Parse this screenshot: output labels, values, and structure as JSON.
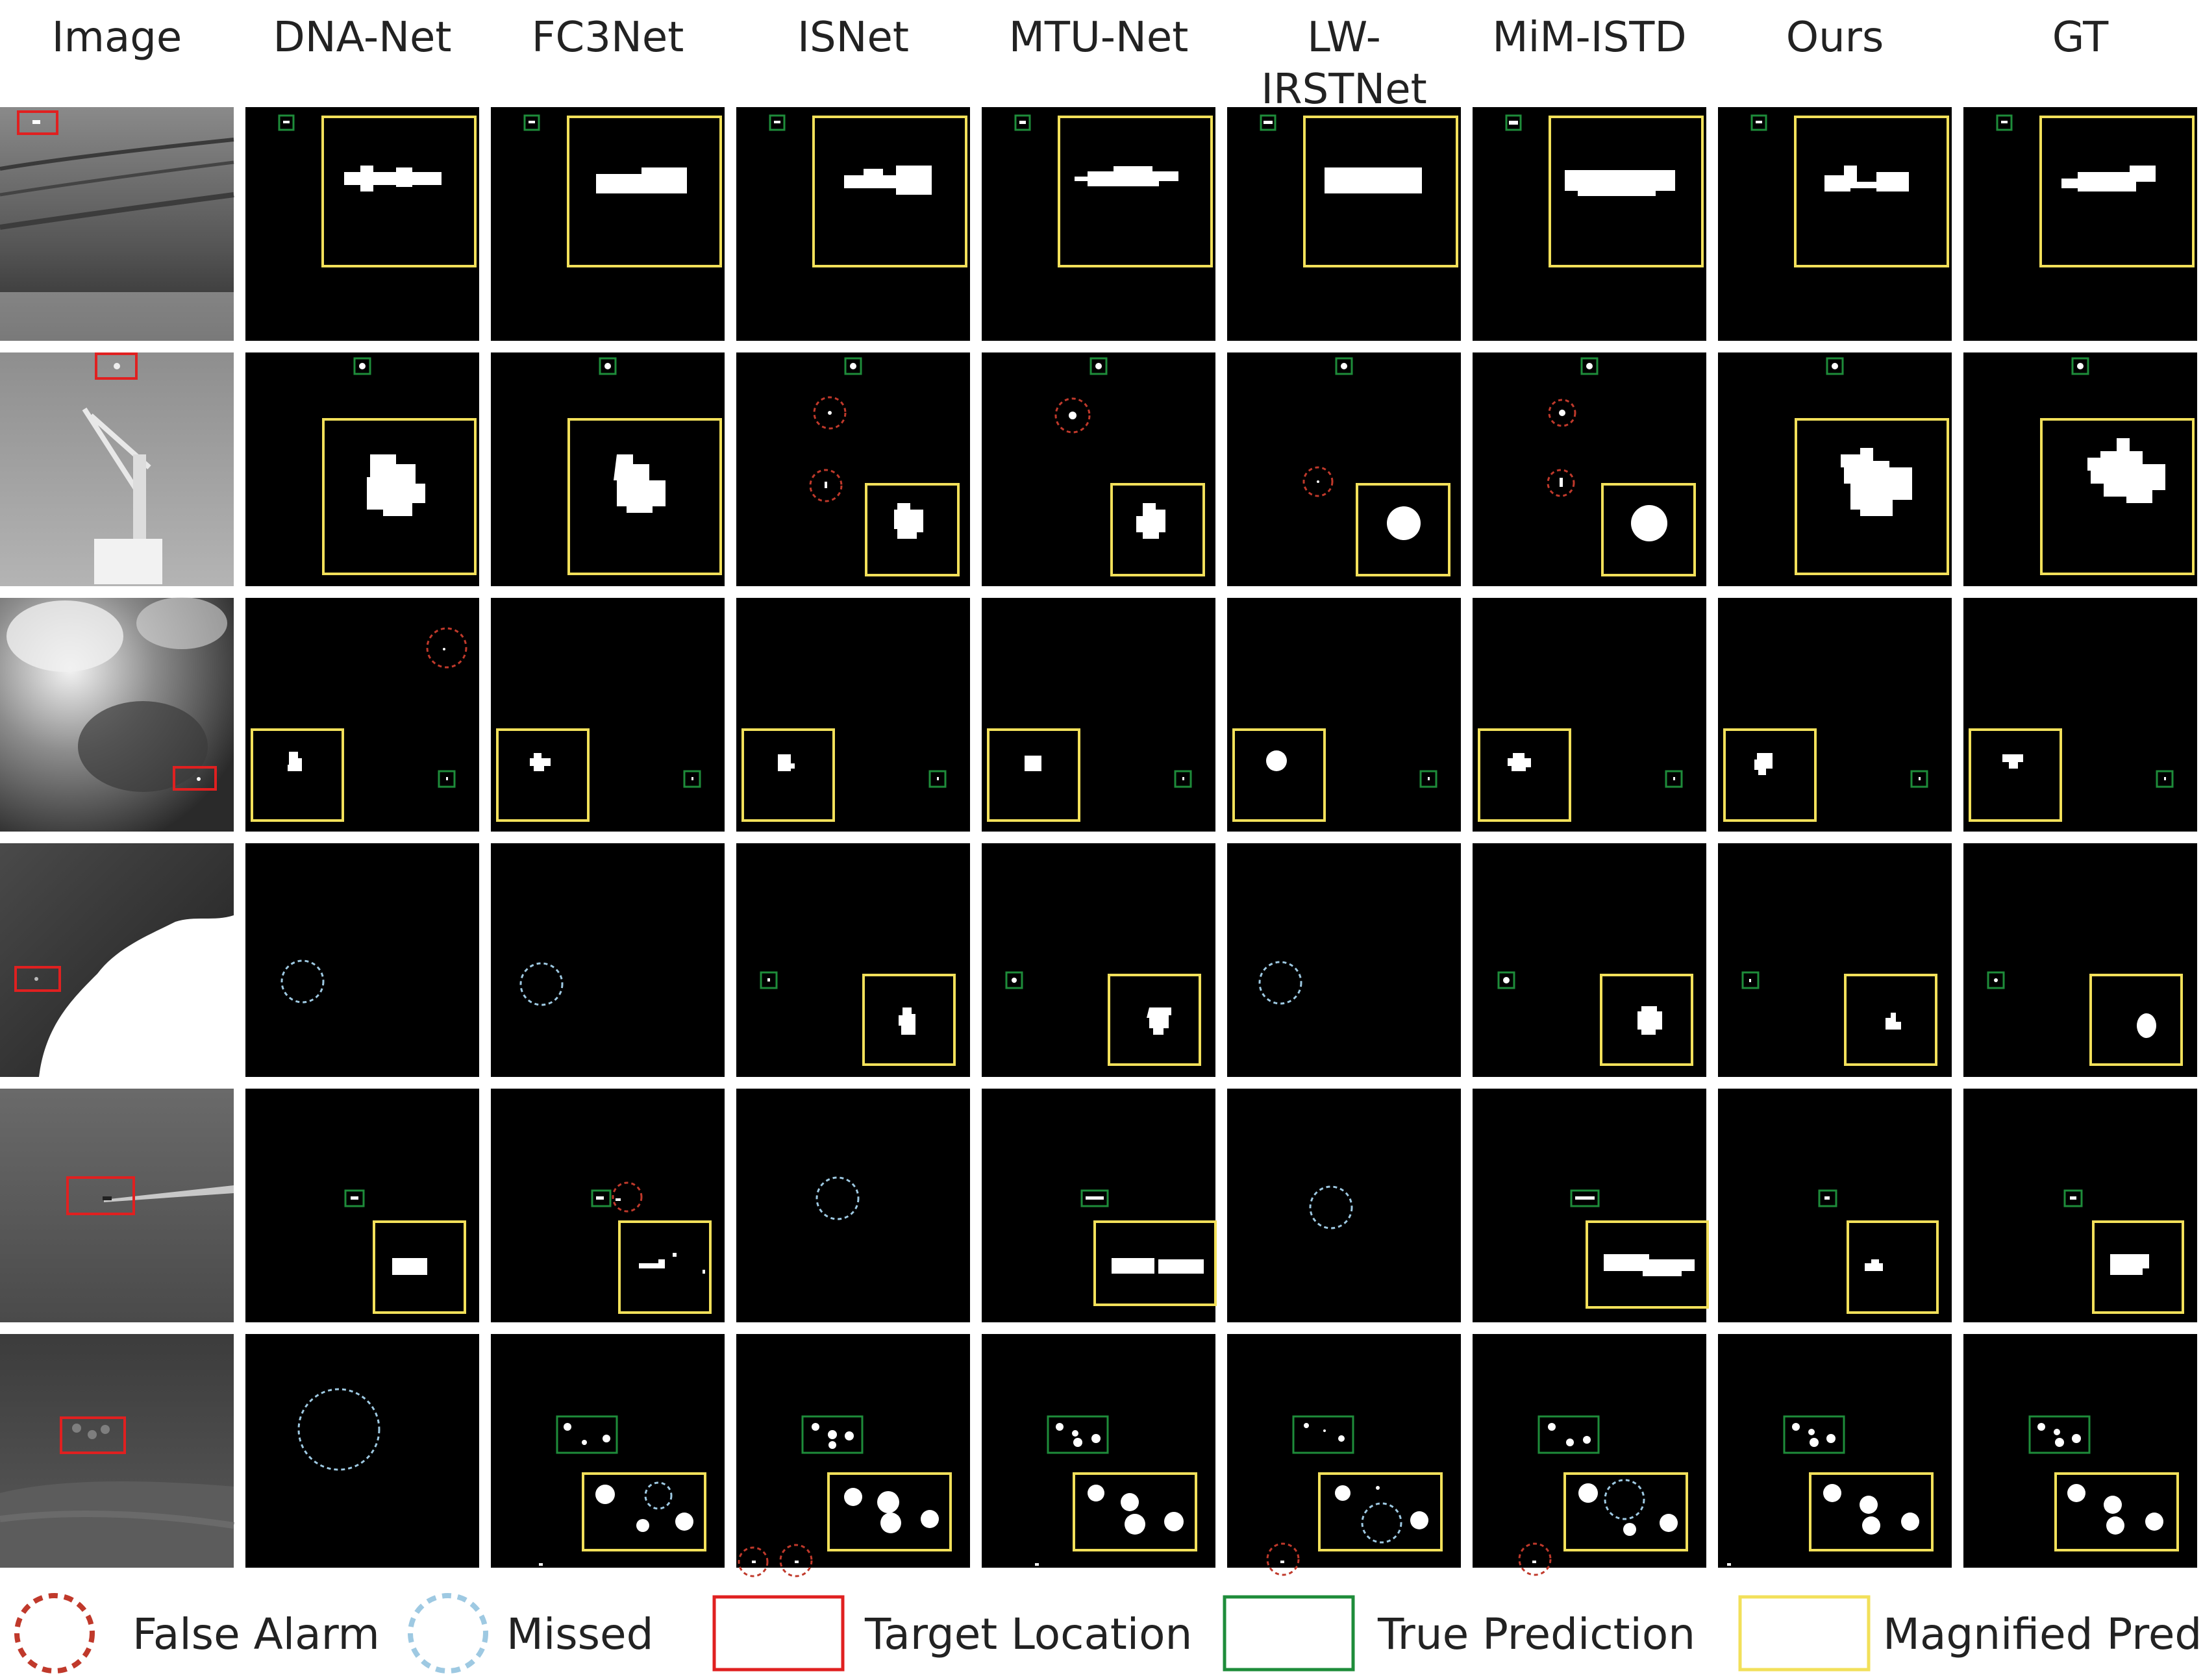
{
  "columns": [
    "Image",
    "DNA-Net",
    "FC3Net",
    "ISNet",
    "MTU-Net",
    "LW-IRSTNet",
    "MiM-ISTD",
    "Ours",
    "GT"
  ],
  "legend": {
    "false_alarm": "False Alarm",
    "missed": "Missed",
    "target_location": "Target Location",
    "true_prediction": "True Prediction",
    "magnified_pred": "Magnified Pred"
  },
  "colors": {
    "false_alarm": "#c0392b",
    "missed": "#9ec9e2",
    "target_location": "#e02020",
    "true_prediction": "#1e8c3a",
    "magnified_pred": "#f2e05a"
  }
}
